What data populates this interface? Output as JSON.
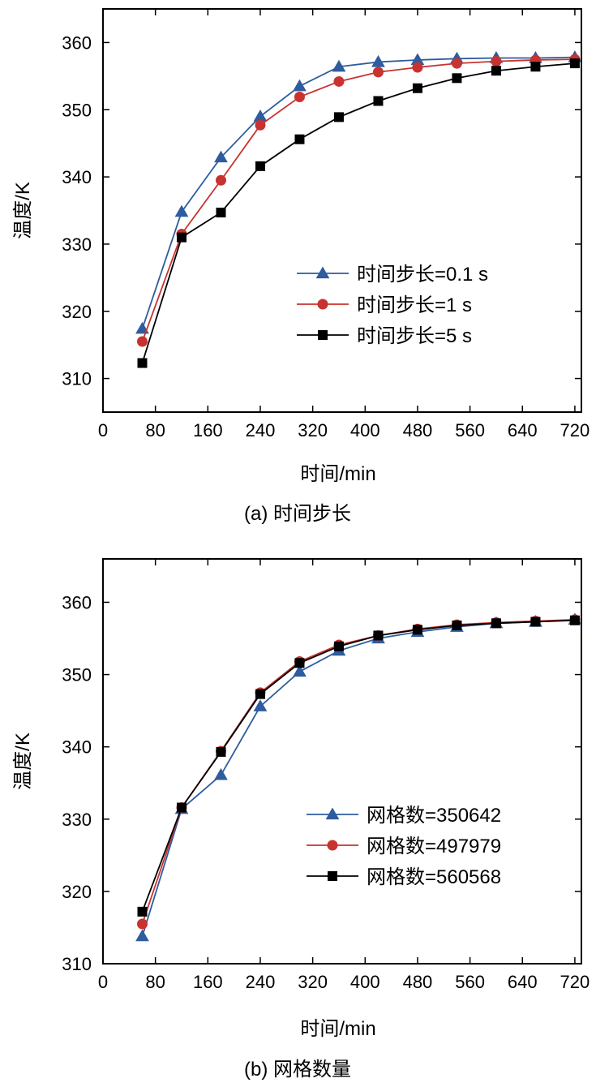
{
  "chart_data": [
    {
      "type": "line",
      "caption": "(a) 时间步长",
      "xlabel": "时间/min",
      "ylabel": "温度/K",
      "xlim": [
        0,
        730
      ],
      "ylim": [
        305,
        365
      ],
      "xticks": [
        0,
        80,
        160,
        240,
        320,
        400,
        480,
        560,
        640,
        720
      ],
      "yticks": [
        310,
        320,
        330,
        340,
        350,
        360
      ],
      "x": [
        60,
        120,
        180,
        240,
        300,
        360,
        420,
        480,
        540,
        600,
        660,
        720
      ],
      "series": [
        {
          "name": "时间步长=0.1 s",
          "marker": "triangle",
          "color": "#2e5c9e",
          "values": [
            317.4,
            334.8,
            342.9,
            349.0,
            353.5,
            356.4,
            357.1,
            357.4,
            357.6,
            357.7,
            357.7,
            357.8
          ]
        },
        {
          "name": "时间步长=1 s",
          "marker": "circle",
          "color": "#c8332f",
          "values": [
            315.5,
            331.5,
            339.5,
            347.7,
            351.9,
            354.2,
            355.6,
            356.3,
            356.9,
            357.2,
            357.4,
            357.5
          ]
        },
        {
          "name": "时间步长=5 s",
          "marker": "square",
          "color": "#000000",
          "values": [
            312.3,
            331.0,
            334.7,
            341.6,
            345.6,
            348.9,
            351.3,
            353.2,
            354.7,
            355.8,
            356.4,
            356.9
          ]
        }
      ]
    },
    {
      "type": "line",
      "caption": "(b) 网格数量",
      "xlabel": "时间/min",
      "ylabel": "温度/K",
      "xlim": [
        0,
        730
      ],
      "ylim": [
        310,
        366
      ],
      "xticks": [
        0,
        80,
        160,
        240,
        320,
        400,
        480,
        560,
        640,
        720
      ],
      "yticks": [
        310,
        320,
        330,
        340,
        350,
        360
      ],
      "x": [
        60,
        120,
        180,
        240,
        300,
        360,
        420,
        480,
        540,
        600,
        660,
        720
      ],
      "series": [
        {
          "name": "网格数=350642",
          "marker": "triangle",
          "color": "#2e5c9e",
          "values": [
            313.8,
            331.4,
            336.1,
            345.6,
            350.4,
            353.3,
            355.0,
            355.9,
            356.6,
            357.1,
            357.3,
            357.6
          ]
        },
        {
          "name": "网格数=497979",
          "marker": "circle",
          "color": "#c8332f",
          "values": [
            315.5,
            331.6,
            339.4,
            347.5,
            351.8,
            354.1,
            355.4,
            356.3,
            356.9,
            357.2,
            357.4,
            357.6
          ]
        },
        {
          "name": "网格数=560568",
          "marker": "square",
          "color": "#000000",
          "values": [
            317.2,
            331.6,
            339.3,
            347.3,
            351.6,
            353.9,
            355.4,
            356.2,
            356.8,
            357.1,
            357.3,
            357.5
          ]
        }
      ]
    }
  ]
}
